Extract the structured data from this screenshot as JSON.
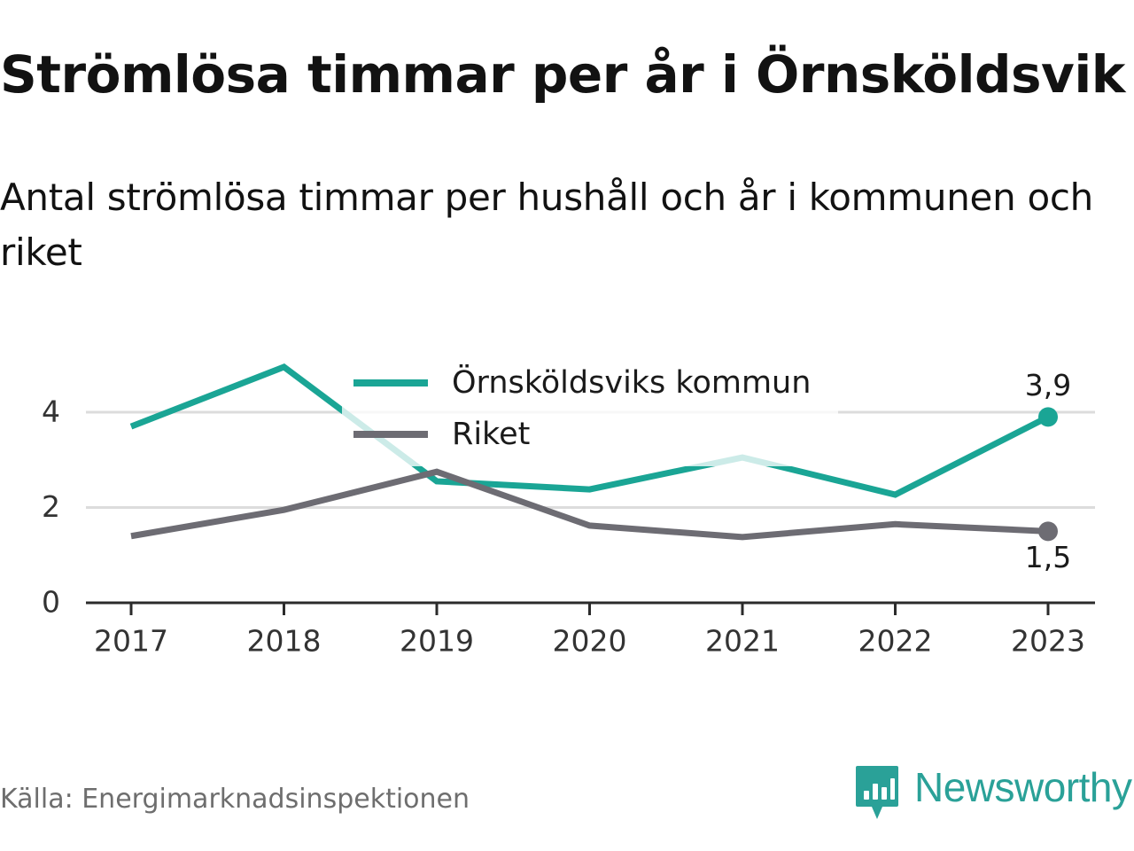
{
  "title": "Strömlösa timmar per år i Örnsköldsvik",
  "subtitle": "Antal strömlösa timmar per hushåll och år i kommunen och riket",
  "source": "Källa: Energimarknadsinspektionen",
  "brand": "Newsworthy",
  "colors": {
    "municipality": "#1aa595",
    "national": "#6d6c73",
    "grid": "#dcdcdc",
    "axis": "#2b2b2b",
    "brand": "#2aa198"
  },
  "chart_data": {
    "type": "line",
    "x": [
      "2017",
      "2018",
      "2019",
      "2020",
      "2021",
      "2022",
      "2023"
    ],
    "ylim": [
      0,
      5
    ],
    "yticks": [
      "0",
      "2",
      "4"
    ],
    "series": [
      {
        "name": "Örnsköldsviks kommun",
        "values": [
          3.7,
          4.95,
          2.55,
          2.38,
          3.05,
          2.27,
          3.9
        ],
        "end_label": "3,9"
      },
      {
        "name": "Riket",
        "values": [
          1.4,
          1.95,
          2.75,
          1.62,
          1.38,
          1.65,
          1.5
        ],
        "end_label": "1,5"
      }
    ],
    "legend_position": "top",
    "grid": true
  }
}
